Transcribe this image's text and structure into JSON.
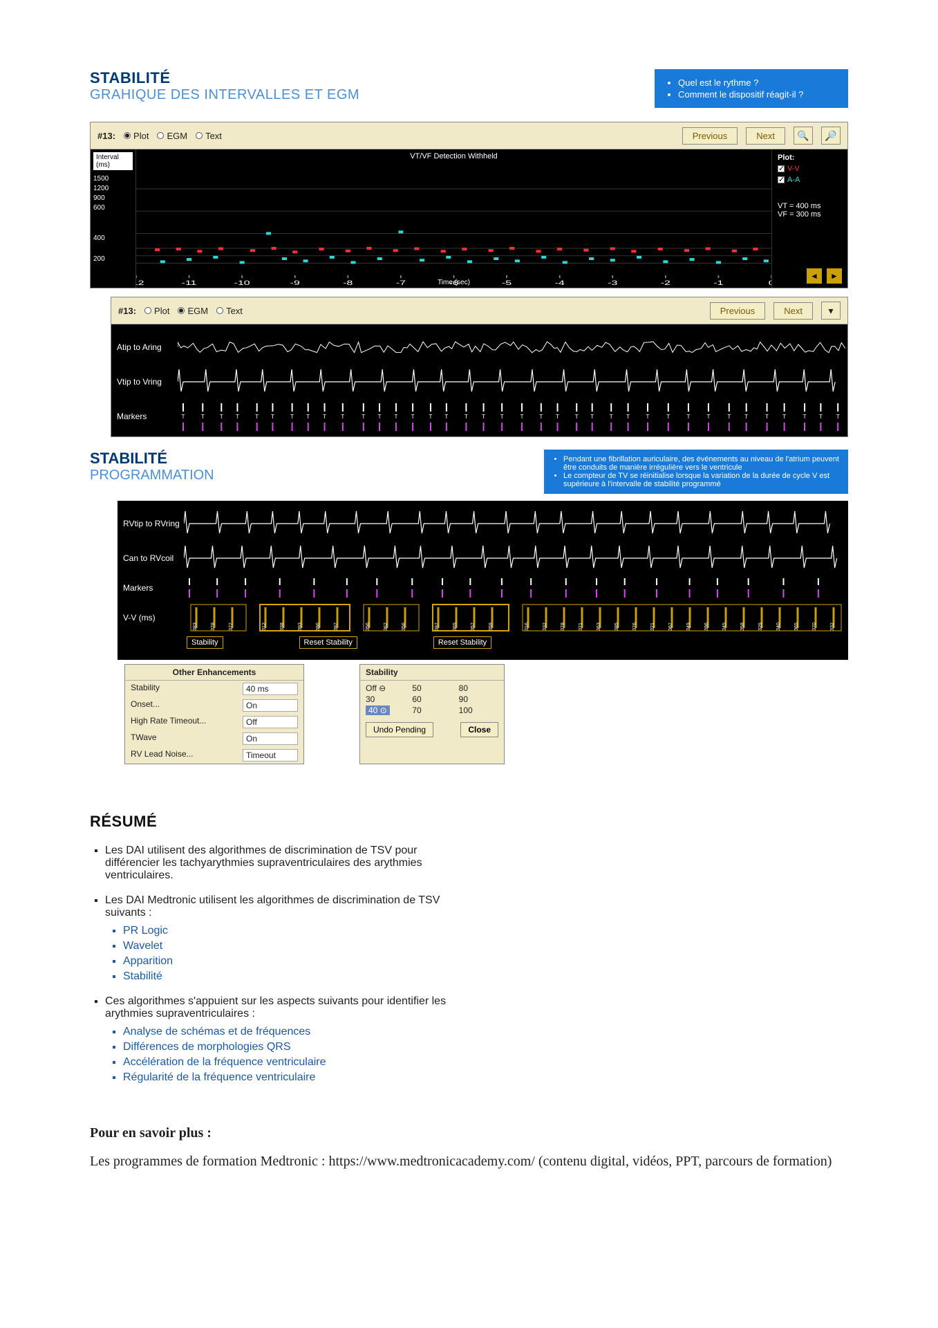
{
  "section1": {
    "title": "STABILITÉ",
    "subtitle": "GRAHIQUE DES INTERVALLES ET EGM",
    "questions": [
      "Quel est le rythme ?",
      "Comment le dispositif réagit-il ?"
    ]
  },
  "panel_plot": {
    "id_label": "#13:",
    "radios": {
      "plot": "Plot",
      "egm": "EGM",
      "text": "Text"
    },
    "selected": "plot",
    "prev": "Previous",
    "next": "Next",
    "zoom_in": "⊕",
    "zoom_out": "⊖",
    "type": "scatter",
    "overlay_title": "VT/VF Detection Withheld",
    "y_axis_label": "Interval (ms)",
    "y_ticks": [
      "1500",
      "1200",
      "900",
      "600",
      "400",
      "200"
    ],
    "x_label": "Time (sec)",
    "x_ticks": [
      "-12",
      "-11",
      "-10",
      "-9",
      "-8",
      "-7",
      "-6",
      "-5",
      "-4",
      "-3",
      "-2",
      "-1",
      "0"
    ],
    "xlim": [
      -12,
      0
    ],
    "ylim": [
      0,
      1600
    ],
    "background_color": "#000000",
    "grid_color": "#222222",
    "legend_header": "Plot:",
    "legend": [
      {
        "key": "V-V",
        "color": "#ff3030",
        "checked": true
      },
      {
        "key": "A-A",
        "color": "#2fd6d6",
        "checked": true
      }
    ],
    "annotations": [
      "VT = 400 ms",
      "VF = 300 ms"
    ],
    "series_vv": {
      "color": "#ff3030",
      "marker": "square",
      "points": [
        {
          "x": -11.6,
          "y": 380
        },
        {
          "x": -11.2,
          "y": 390
        },
        {
          "x": -10.8,
          "y": 360
        },
        {
          "x": -10.4,
          "y": 395
        },
        {
          "x": -9.8,
          "y": 370
        },
        {
          "x": -9.4,
          "y": 400
        },
        {
          "x": -9.0,
          "y": 350
        },
        {
          "x": -8.5,
          "y": 390
        },
        {
          "x": -8.0,
          "y": 365
        },
        {
          "x": -7.6,
          "y": 400
        },
        {
          "x": -7.1,
          "y": 370
        },
        {
          "x": -6.7,
          "y": 395
        },
        {
          "x": -6.2,
          "y": 360
        },
        {
          "x": -5.8,
          "y": 390
        },
        {
          "x": -5.3,
          "y": 370
        },
        {
          "x": -4.9,
          "y": 400
        },
        {
          "x": -4.4,
          "y": 360
        },
        {
          "x": -4.0,
          "y": 390
        },
        {
          "x": -3.5,
          "y": 375
        },
        {
          "x": -3.0,
          "y": 395
        },
        {
          "x": -2.6,
          "y": 360
        },
        {
          "x": -2.1,
          "y": 390
        },
        {
          "x": -1.6,
          "y": 370
        },
        {
          "x": -1.2,
          "y": 395
        },
        {
          "x": -0.7,
          "y": 365
        },
        {
          "x": -0.3,
          "y": 390
        }
      ]
    },
    "series_aa": {
      "color": "#2fd6d6",
      "marker": "square",
      "points": [
        {
          "x": -11.5,
          "y": 220
        },
        {
          "x": -11.0,
          "y": 250
        },
        {
          "x": -10.5,
          "y": 280
        },
        {
          "x": -10.0,
          "y": 210
        },
        {
          "x": -9.5,
          "y": 600
        },
        {
          "x": -9.2,
          "y": 260
        },
        {
          "x": -8.8,
          "y": 230
        },
        {
          "x": -8.3,
          "y": 280
        },
        {
          "x": -7.9,
          "y": 210
        },
        {
          "x": -7.4,
          "y": 260
        },
        {
          "x": -7.0,
          "y": 620
        },
        {
          "x": -6.6,
          "y": 240
        },
        {
          "x": -6.1,
          "y": 280
        },
        {
          "x": -5.7,
          "y": 220
        },
        {
          "x": -5.2,
          "y": 260
        },
        {
          "x": -4.8,
          "y": 230
        },
        {
          "x": -4.3,
          "y": 280
        },
        {
          "x": -3.9,
          "y": 210
        },
        {
          "x": -3.4,
          "y": 260
        },
        {
          "x": -3.0,
          "y": 240
        },
        {
          "x": -2.5,
          "y": 280
        },
        {
          "x": -2.0,
          "y": 220
        },
        {
          "x": -1.5,
          "y": 250
        },
        {
          "x": -1.0,
          "y": 210
        },
        {
          "x": -0.5,
          "y": 260
        },
        {
          "x": -0.1,
          "y": 230
        }
      ]
    }
  },
  "panel_egm1": {
    "id_label": "#13:",
    "radios": {
      "plot": "Plot",
      "egm": "EGM",
      "text": "Text"
    },
    "selected": "egm",
    "prev": "Previous",
    "next": "Next",
    "background_color": "#000000",
    "trace_color": "#ffffff",
    "marker_top_color": "#ffffff",
    "marker_bot_color": "#d946ef",
    "rows": [
      {
        "label": "Atip to Aring",
        "type": "af"
      },
      {
        "label": "Vtip to Vring",
        "type": "vent"
      },
      {
        "label": "Markers",
        "type": "markers"
      }
    ]
  },
  "section2": {
    "title": "STABILITÉ",
    "subtitle": "PROGRAMMATION",
    "notes": [
      "Pendant une fibrillation auriculaire, des événements au niveau de l'atrium peuvent être conduits de manière irrégulière vers le ventricule",
      "Le compteur de TV se réinitialise lorsque la variation de la durée de cycle V est supérieure à l'intervalle de stabilité programmé"
    ]
  },
  "panel_egm2": {
    "background_color": "#000000",
    "trace_color": "#ffffff",
    "highlight_color": "#d4a500",
    "marker_color": "#d946ef",
    "rows": [
      {
        "label": "RVtip to RVring",
        "type": "vent"
      },
      {
        "label": "Can to RVcoil",
        "type": "vent"
      },
      {
        "label": "Markers",
        "type": "markers2"
      },
      {
        "label": "V-V (ms)",
        "type": "vvms"
      }
    ],
    "stability_labels": [
      "Stability",
      "Reset Stability",
      "Reset Stability"
    ]
  },
  "settings": {
    "header": "Other Enhancements",
    "rows": [
      {
        "k": "Stability",
        "v": "40 ms"
      },
      {
        "k": "Onset...",
        "v": "On"
      },
      {
        "k": "High Rate Timeout...",
        "v": "Off"
      },
      {
        "k": "TWave",
        "v": "On"
      },
      {
        "k": "RV Lead Noise...",
        "v": "Timeout"
      }
    ]
  },
  "stability_select": {
    "header": "Stability",
    "grid": [
      [
        "Off ⊖",
        "50",
        "80"
      ],
      [
        "30",
        "60",
        "90"
      ],
      [
        "40 ⊙",
        "70",
        "100"
      ]
    ],
    "selected": "40 ⊙",
    "undo": "Undo Pending",
    "close": "Close"
  },
  "resume": {
    "title": "RÉSUMÉ",
    "items": [
      {
        "text": "Les DAI utilisent des algorithmes de discrimination de TSV pour différencier les tachyarythmies supraventriculaires des arythmies ventriculaires."
      },
      {
        "text": "Les DAI Medtronic utilisent les algorithmes de discrimination de TSV suivants :",
        "sub": [
          "PR Logic",
          "Wavelet",
          "Apparition",
          "Stabilité"
        ]
      },
      {
        "text": "Ces algorithmes s'appuient sur les aspects suivants pour identifier les arythmies supraventriculaires :",
        "sub": [
          "Analyse de schémas et de fréquences",
          "Différences de morphologies QRS",
          "Accélération de la fréquence ventriculaire",
          "Régularité de la fréquence ventriculaire"
        ]
      }
    ]
  },
  "more": {
    "header": "Pour en savoir plus :",
    "body": "Les programmes de formation Medtronic : https://www.medtronicacademy.com/ (contenu digital, vidéos, PPT, parcours de formation)"
  }
}
